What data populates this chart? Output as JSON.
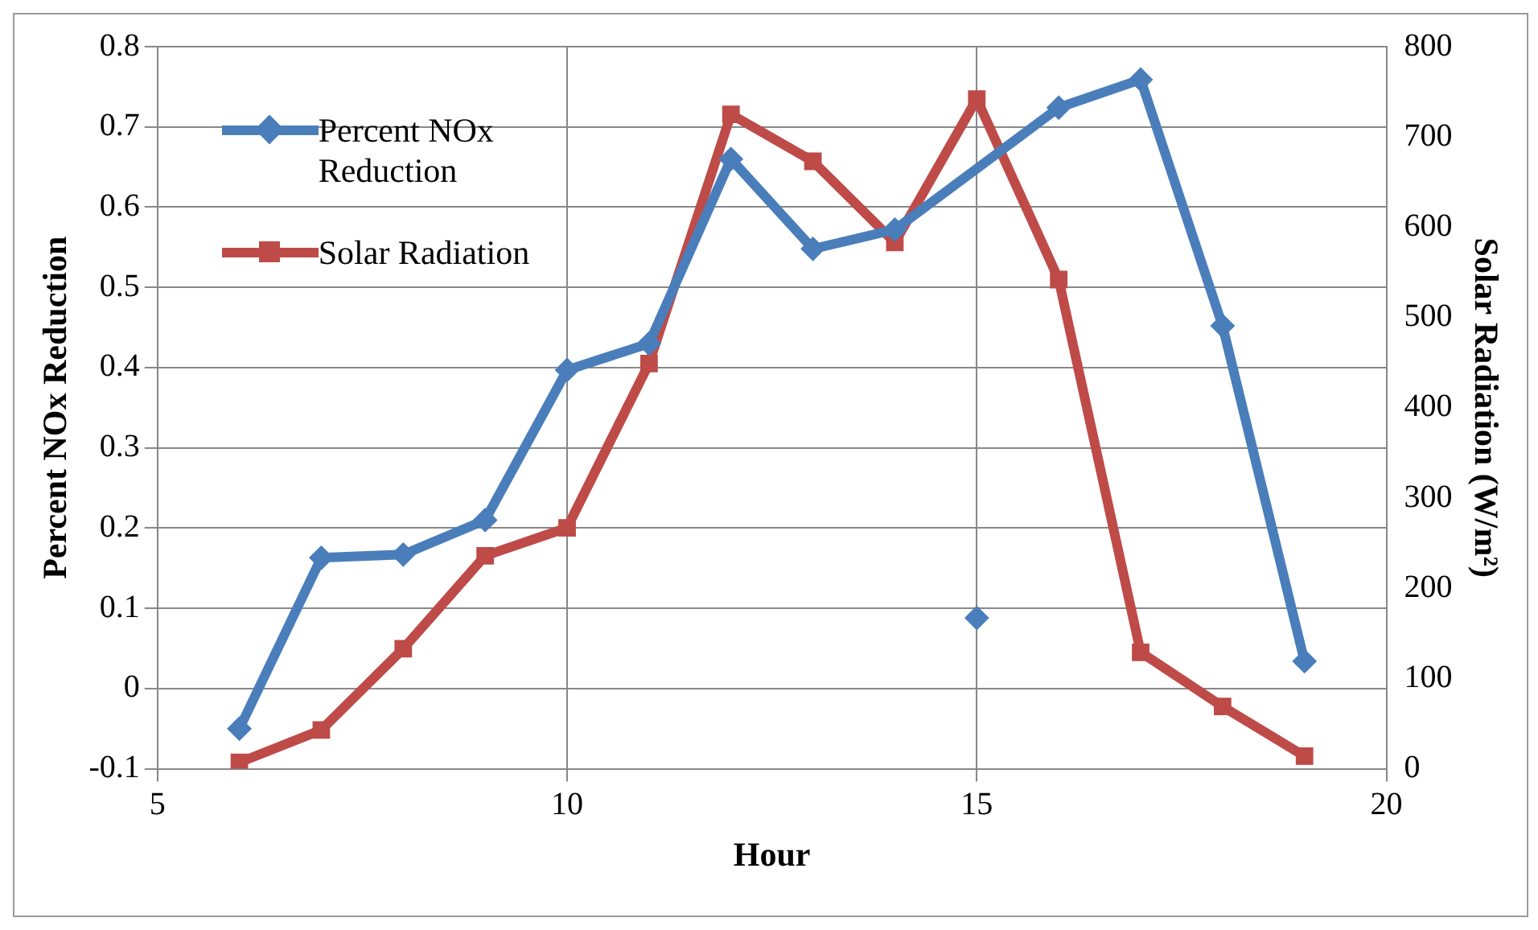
{
  "chart_data": {
    "type": "line",
    "xlabel": "Hour",
    "ylabel": "Percent NOx Reduction",
    "y2label": "Solar Radiation (W/m²)",
    "xlim": [
      5,
      20
    ],
    "xticks": [
      5,
      10,
      15,
      20
    ],
    "ylim": [
      -0.1,
      0.8
    ],
    "yticks": [
      -0.1,
      0,
      0.1,
      0.2,
      0.3,
      0.4,
      0.5,
      0.6,
      0.7,
      0.8
    ],
    "y2lim": [
      0,
      800
    ],
    "y2ticks": [
      0,
      100,
      200,
      300,
      400,
      500,
      600,
      700,
      800
    ],
    "grid": true,
    "legend": "top left",
    "line_style": "solid",
    "series": [
      {
        "name": "Percent NOx Reduction",
        "color": "#4a7ebb",
        "marker": "diamond",
        "x": [
          6,
          7,
          8,
          9,
          10,
          11,
          12,
          13,
          14,
          16,
          17,
          18,
          19
        ],
        "values": [
          -0.05,
          0.163,
          0.167,
          0.21,
          0.397,
          0.43,
          0.66,
          0.548,
          0.572,
          0.724,
          0.759,
          0.452,
          0.034
        ]
      },
      {
        "type": "scatter",
        "color": "#4a7ebb",
        "marker": "diamond",
        "x": [
          15
        ],
        "values": [
          0.088
        ]
      },
      {
        "name": "Solar Radiation",
        "color": "#be4b48",
        "marker": "square",
        "axis": "y2",
        "x": [
          6,
          7,
          8,
          9,
          10,
          11,
          12,
          13,
          14,
          15,
          16,
          17,
          18,
          19
        ],
        "values": [
          7,
          43,
          133,
          236,
          267,
          449,
          725,
          673,
          583,
          742,
          542,
          129,
          69,
          14
        ]
      }
    ]
  }
}
